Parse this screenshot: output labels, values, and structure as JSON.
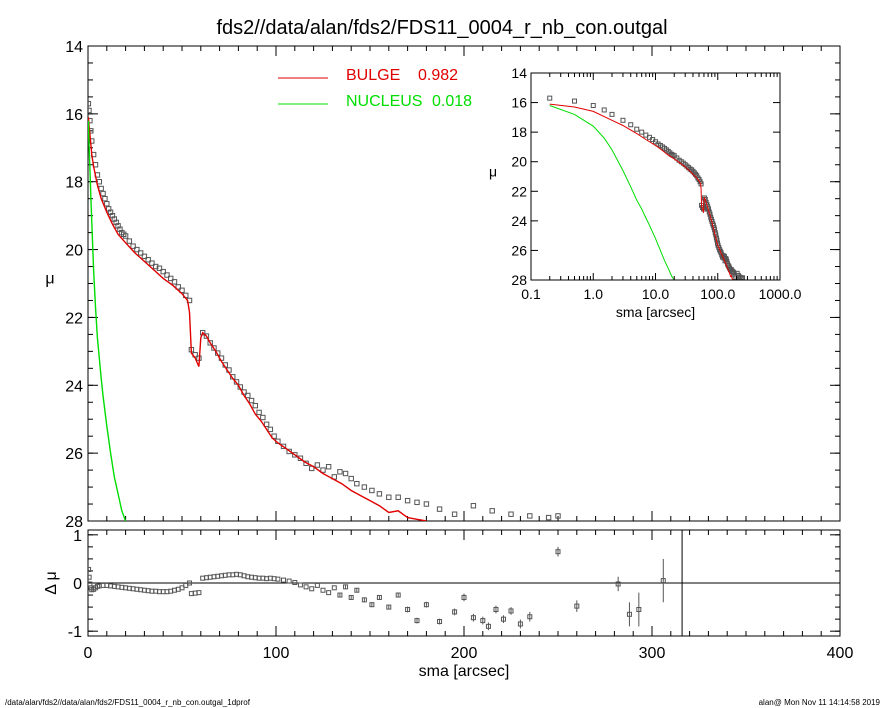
{
  "title": "fds2//data/alan/fds2/FDS11_0004_r_nb_con.outgal",
  "footer_left": "/data/alan/fds2//data/alan/fds2/FDS11_0004_r_nb_con.outgal_1dprof",
  "footer_right": "alan@  Mon Nov 11 14:14:58 2019",
  "colors": {
    "bulge": "#e00000",
    "nucleus": "#00dd00",
    "data": "#555555",
    "axes": "#000000"
  },
  "chart_data": [
    {
      "type": "scatter",
      "panel": "main",
      "xlabel": "",
      "ylabel": "μ",
      "xlim": [
        0,
        400
      ],
      "ylim": [
        28,
        14
      ],
      "xticks": [
        0,
        100,
        200,
        300,
        400
      ],
      "yticks": [
        14,
        16,
        18,
        20,
        22,
        24,
        26,
        28
      ],
      "legend": [
        {
          "name": "BULGE",
          "value": "0.982",
          "color": "#e00000"
        },
        {
          "name": "NUCLEUS",
          "value": "0.018",
          "color": "#00dd00"
        }
      ],
      "legend_position": "top-center",
      "series": [
        {
          "name": "data",
          "kind": "points",
          "x": [
            0.2,
            0.5,
            1,
            1.5,
            2,
            3,
            4,
            5,
            6,
            7,
            8,
            9,
            10,
            11,
            12,
            13,
            14,
            15,
            16,
            17,
            18,
            19,
            20,
            22,
            24,
            26,
            28,
            30,
            32,
            34,
            36,
            38,
            40,
            42,
            44,
            46,
            48,
            50,
            52,
            54,
            55,
            57,
            59,
            61,
            63,
            65,
            67,
            69,
            71,
            73,
            75,
            77,
            79,
            81,
            83,
            85,
            87,
            89,
            91,
            93,
            95,
            97,
            99,
            101,
            104,
            107,
            110,
            113,
            116,
            119,
            122,
            125,
            128,
            131,
            134,
            137,
            140,
            143,
            147,
            151,
            155,
            160,
            165,
            170,
            175,
            180,
            187,
            195,
            205,
            215,
            225,
            235,
            245,
            250
          ],
          "y": [
            15.7,
            15.9,
            16.2,
            16.5,
            16.8,
            17.2,
            17.5,
            17.8,
            18.0,
            18.2,
            18.35,
            18.5,
            18.65,
            18.8,
            18.9,
            19.0,
            19.1,
            19.2,
            19.3,
            19.4,
            19.5,
            19.55,
            19.6,
            19.75,
            19.9,
            20.0,
            20.1,
            20.2,
            20.3,
            20.4,
            20.5,
            20.55,
            20.65,
            20.75,
            20.85,
            20.95,
            21.1,
            21.2,
            21.35,
            21.5,
            22.95,
            23.1,
            23.2,
            22.45,
            22.55,
            22.75,
            22.9,
            23.05,
            23.2,
            23.4,
            23.55,
            23.75,
            23.9,
            24.05,
            24.2,
            24.3,
            24.45,
            24.6,
            24.8,
            24.95,
            25.15,
            25.3,
            25.5,
            25.65,
            25.8,
            25.95,
            26.05,
            26.15,
            26.3,
            26.45,
            26.35,
            26.5,
            26.4,
            26.7,
            26.55,
            26.6,
            26.75,
            26.9,
            27.0,
            27.1,
            27.2,
            27.3,
            27.3,
            27.4,
            27.45,
            27.5,
            27.65,
            27.8,
            27.55,
            27.7,
            27.8,
            27.85,
            27.9,
            27.85
          ]
        },
        {
          "name": "BULGE",
          "kind": "line",
          "color": "#e00000",
          "x": [
            0.2,
            0.5,
            1,
            2,
            3,
            5,
            7,
            10,
            13,
            16,
            20,
            25,
            30,
            35,
            40,
            45,
            50,
            53,
            54,
            55,
            57,
            59,
            60,
            61,
            63,
            65,
            68,
            71,
            74,
            77,
            80,
            83,
            86,
            89,
            92,
            95,
            98,
            101,
            105,
            110,
            115,
            120,
            125,
            130,
            135,
            140,
            145,
            150,
            155,
            160,
            165,
            170,
            175,
            180
          ],
          "y": [
            16.1,
            16.3,
            16.6,
            17.2,
            17.55,
            18.1,
            18.5,
            18.9,
            19.25,
            19.55,
            19.8,
            20.1,
            20.35,
            20.6,
            20.85,
            21.05,
            21.3,
            21.5,
            21.85,
            23.05,
            23.2,
            23.45,
            22.6,
            22.45,
            22.55,
            22.75,
            23.0,
            23.3,
            23.55,
            23.8,
            24.0,
            24.3,
            24.55,
            24.85,
            25.05,
            25.3,
            25.55,
            25.7,
            25.85,
            26.05,
            26.25,
            26.4,
            26.6,
            26.75,
            26.9,
            27.1,
            27.25,
            27.4,
            27.55,
            27.75,
            27.7,
            27.9,
            27.95,
            28.0
          ]
        },
        {
          "name": "NUCLEUS",
          "kind": "line",
          "color": "#00dd00",
          "x": [
            0.2,
            0.5,
            1,
            1.5,
            2,
            3,
            4,
            5,
            6,
            7,
            8,
            10,
            12,
            14,
            16,
            18,
            20
          ],
          "y": [
            16.2,
            16.8,
            17.6,
            18.4,
            19.2,
            20.6,
            21.7,
            22.6,
            23.2,
            23.8,
            24.3,
            25.2,
            26.0,
            26.7,
            27.2,
            27.7,
            28.0
          ]
        }
      ]
    },
    {
      "type": "scatter",
      "panel": "inset",
      "xlabel": "sma [arcsec]",
      "ylabel": "μ",
      "xscale": "log",
      "xlim": [
        0.1,
        1000
      ],
      "ylim": [
        28,
        14
      ],
      "xticks": [
        0.1,
        1,
        10,
        100,
        1000
      ],
      "xticklabels": [
        "0.1",
        "1.0",
        "10.0",
        "100.0",
        "1000.0"
      ],
      "yticks": [
        14,
        16,
        18,
        20,
        22,
        24,
        26,
        28
      ],
      "series": [
        {
          "name": "data",
          "kind": "points"
        },
        {
          "name": "BULGE",
          "kind": "line",
          "color": "#e00000"
        },
        {
          "name": "NUCLEUS",
          "kind": "line",
          "color": "#00dd00"
        }
      ]
    },
    {
      "type": "scatter",
      "panel": "residual",
      "xlabel": "sma [arcsec]",
      "ylabel": "Δ μ",
      "xlim": [
        0,
        400
      ],
      "ylim": [
        -1.1,
        1.1
      ],
      "xticks": [
        0,
        100,
        200,
        300,
        400
      ],
      "yticks": [
        1,
        0,
        -1
      ],
      "vline_x": 316,
      "series": [
        {
          "name": "residual",
          "kind": "points",
          "x": [
            0.3,
            0.6,
            1,
            1.5,
            2,
            3,
            4,
            5,
            6,
            8,
            10,
            12,
            14,
            16,
            18,
            20,
            22,
            24,
            26,
            28,
            30,
            32,
            34,
            36,
            38,
            40,
            42,
            44,
            46,
            48,
            50,
            52,
            54,
            55,
            57,
            59,
            61,
            63,
            65,
            67,
            69,
            71,
            73,
            75,
            77,
            79,
            81,
            83,
            85,
            87,
            89,
            91,
            93,
            95,
            97,
            99,
            101,
            104,
            107,
            110,
            113,
            116,
            119,
            122,
            125,
            128,
            131,
            134,
            137,
            140,
            143,
            147,
            151,
            155,
            160,
            165,
            170,
            175,
            180,
            187,
            195,
            200,
            205,
            210,
            213,
            217,
            221,
            225,
            230,
            235,
            250,
            260,
            282,
            288,
            293,
            306
          ],
          "y": [
            0.28,
            0.12,
            -0.02,
            -0.1,
            -0.14,
            -0.13,
            -0.1,
            -0.07,
            -0.06,
            -0.05,
            -0.05,
            -0.06,
            -0.07,
            -0.08,
            -0.09,
            -0.1,
            -0.11,
            -0.12,
            -0.13,
            -0.14,
            -0.15,
            -0.16,
            -0.17,
            -0.17,
            -0.18,
            -0.18,
            -0.18,
            -0.17,
            -0.15,
            -0.13,
            -0.1,
            -0.05,
            0.0,
            -0.22,
            -0.21,
            -0.2,
            0.1,
            0.11,
            0.12,
            0.13,
            0.14,
            0.15,
            0.16,
            0.17,
            0.17,
            0.18,
            0.17,
            0.15,
            0.13,
            0.12,
            0.11,
            0.1,
            0.1,
            0.09,
            0.1,
            0.09,
            0.08,
            0.06,
            0.04,
            0.01,
            -0.04,
            -0.08,
            -0.12,
            -0.05,
            -0.15,
            -0.2,
            -0.1,
            -0.25,
            -0.08,
            -0.3,
            -0.15,
            -0.35,
            -0.45,
            -0.3,
            -0.5,
            -0.25,
            -0.55,
            -0.78,
            -0.45,
            -0.8,
            -0.6,
            -0.3,
            -0.72,
            -0.78,
            -0.9,
            -0.55,
            -0.75,
            -0.58,
            -0.85,
            -0.7,
            0.65,
            -0.48,
            -0.02,
            -0.65,
            -0.55,
            0.05
          ],
          "err": [
            0.01,
            0.01,
            0.01,
            0.01,
            0.01,
            0.01,
            0.01,
            0.01,
            0.01,
            0.01,
            0.01,
            0.01,
            0.01,
            0.01,
            0.01,
            0.01,
            0.01,
            0.01,
            0.01,
            0.01,
            0.01,
            0.01,
            0.01,
            0.01,
            0.01,
            0.01,
            0.01,
            0.01,
            0.01,
            0.01,
            0.01,
            0.01,
            0.01,
            0.02,
            0.02,
            0.02,
            0.02,
            0.02,
            0.02,
            0.02,
            0.02,
            0.02,
            0.02,
            0.02,
            0.02,
            0.02,
            0.02,
            0.02,
            0.02,
            0.02,
            0.02,
            0.02,
            0.02,
            0.02,
            0.02,
            0.02,
            0.02,
            0.03,
            0.03,
            0.03,
            0.03,
            0.03,
            0.03,
            0.03,
            0.03,
            0.03,
            0.03,
            0.04,
            0.04,
            0.04,
            0.04,
            0.05,
            0.05,
            0.05,
            0.05,
            0.05,
            0.06,
            0.06,
            0.06,
            0.06,
            0.07,
            0.08,
            0.08,
            0.08,
            0.08,
            0.08,
            0.08,
            0.08,
            0.09,
            0.1,
            0.1,
            0.12,
            0.15,
            0.25,
            0.35,
            0.45
          ]
        }
      ]
    }
  ]
}
